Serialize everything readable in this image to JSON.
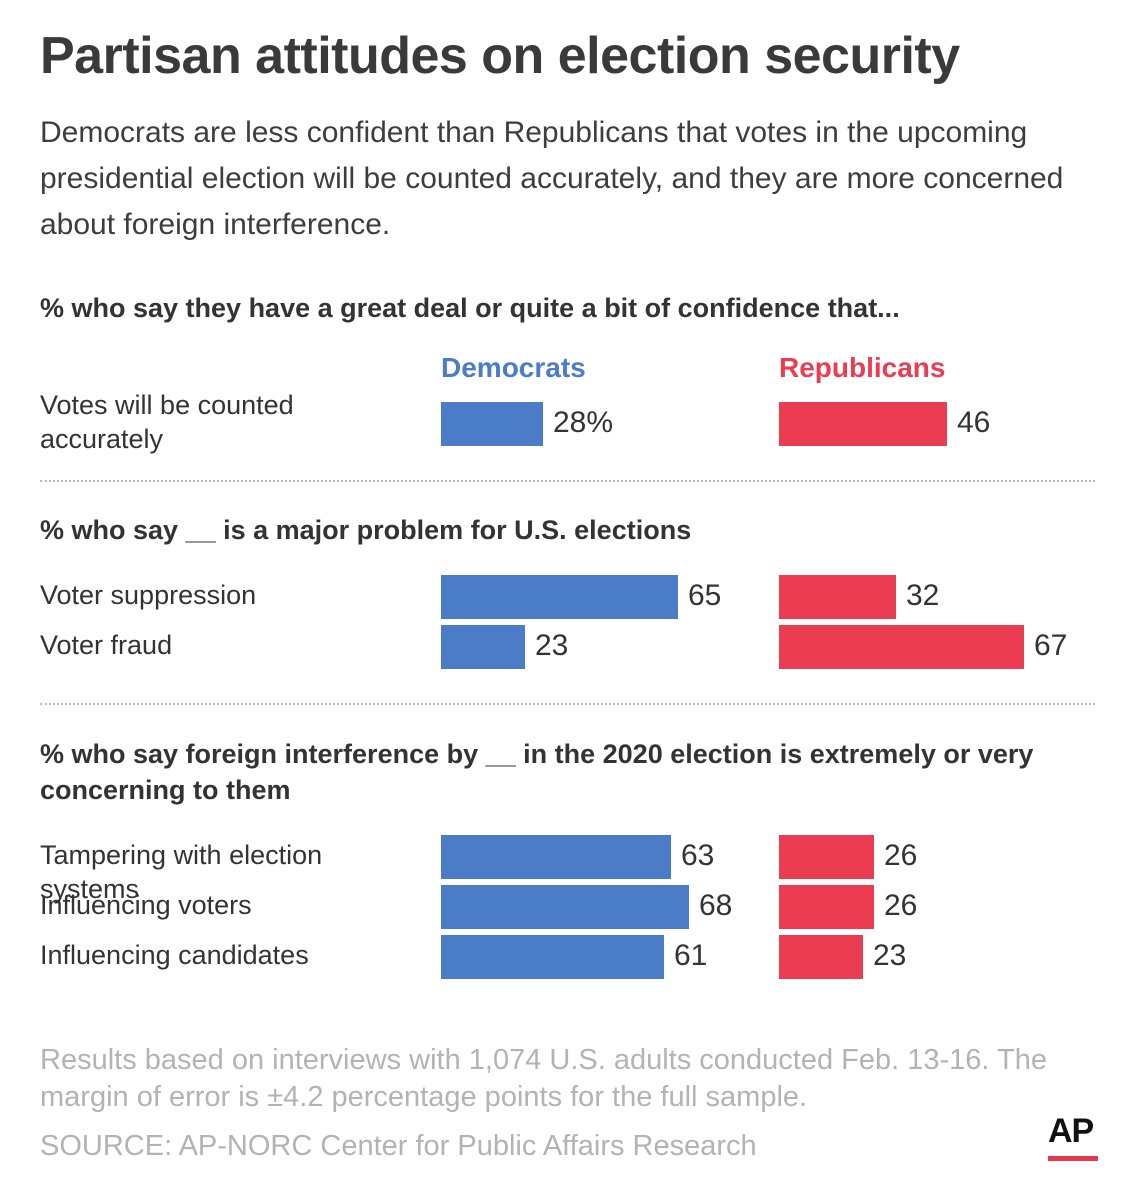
{
  "colors": {
    "democrats": "#4a7cc7",
    "republicans": "#ec3c52"
  },
  "chart_data": {
    "type": "bar",
    "title": "Partisan attitudes on election security",
    "subtitle": "Democrats are less confident than Republicans that votes in the upcoming presidential election will be counted accurately, and they are more concerned about foreign interference.",
    "series_names": [
      "Democrats",
      "Republicans"
    ],
    "sections": [
      {
        "heading": "% who say they have a great deal or quite a bit of confidence that...",
        "rows": [
          {
            "label": "Votes will be counted accurately",
            "democrats": 28,
            "republicans": 46,
            "democrats_label": "28%",
            "republicans_label": "46"
          }
        ]
      },
      {
        "heading": "% who say __ is a major problem for U.S. elections",
        "rows": [
          {
            "label": "Voter suppression",
            "democrats": 65,
            "republicans": 32,
            "democrats_label": "65",
            "republicans_label": "32"
          },
          {
            "label": "Voter fraud",
            "democrats": 23,
            "republicans": 67,
            "democrats_label": "23",
            "republicans_label": "67"
          }
        ]
      },
      {
        "heading": "% who say foreign interference by __ in the 2020 election is extremely or very concerning to them",
        "rows": [
          {
            "label": "Tampering with election systems",
            "democrats": 63,
            "republicans": 26,
            "democrats_label": "63",
            "republicans_label": "26"
          },
          {
            "label": "Influencing voters",
            "democrats": 68,
            "republicans": 26,
            "democrats_label": "68",
            "republicans_label": "26"
          },
          {
            "label": "Influencing candidates",
            "democrats": 61,
            "republicans": 23,
            "democrats_label": "61",
            "republicans_label": "23"
          }
        ]
      }
    ],
    "footnote": "Results based on interviews with 1,074 U.S. adults conducted Feb. 13-16. The margin of error is ±4.2 percentage points for the full sample.",
    "source": "SOURCE: AP-NORC Center for Public Affairs Research"
  },
  "logo": {
    "text": "AP"
  }
}
